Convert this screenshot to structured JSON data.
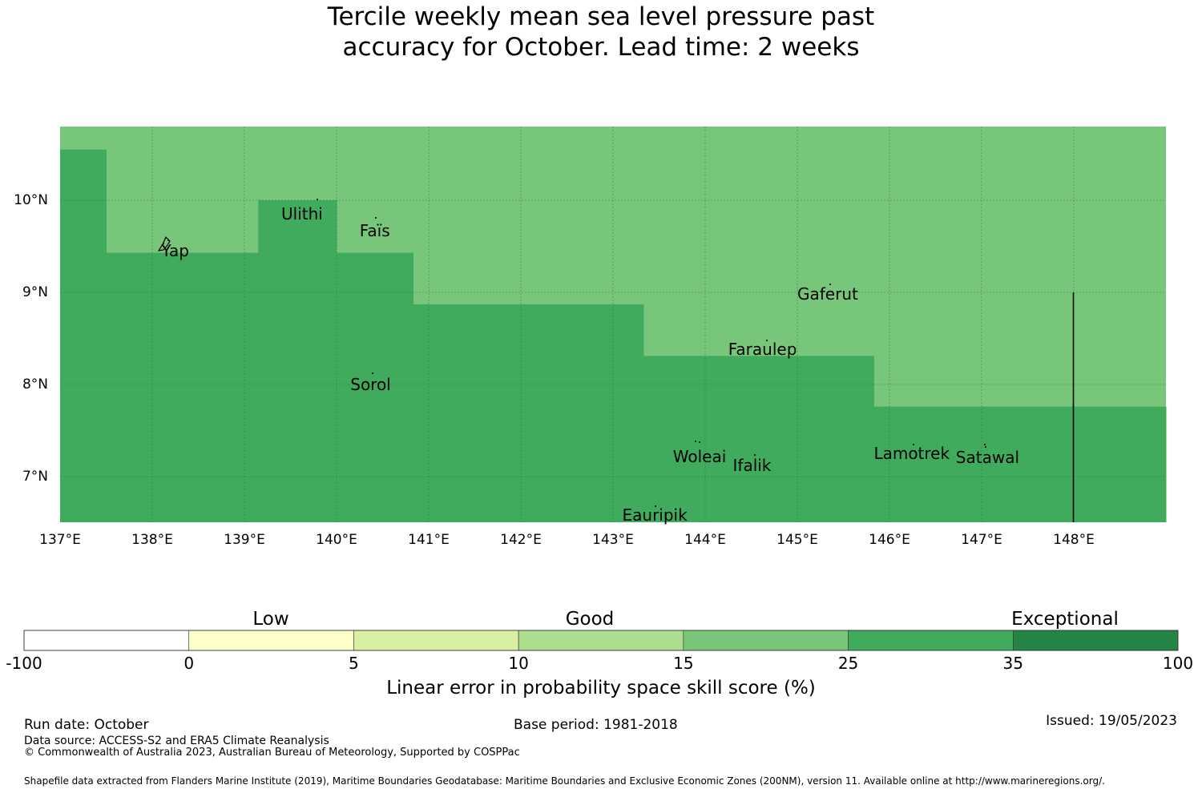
{
  "title_line1": "Tercile weekly mean sea level pressure past",
  "title_line2": "accuracy for October. Lead time: 2 weeks",
  "map": {
    "lon_range": [
      137,
      149
    ],
    "lat_range": [
      6.5,
      10.8
    ],
    "lon_ticks": [
      "137°E",
      "138°E",
      "139°E",
      "140°E",
      "141°E",
      "142°E",
      "143°E",
      "144°E",
      "145°E",
      "146°E",
      "147°E",
      "148°E"
    ],
    "lat_ticks": [
      "10°N",
      "9°N",
      "8°N",
      "7°N"
    ],
    "colors": {
      "light": "#78c679",
      "dark": "#41ab5d"
    },
    "dark_region_lat_tops": [
      {
        "lon_from": 137.0,
        "lon_to": 137.5,
        "lat_top": 10.55
      },
      {
        "lon_from": 137.5,
        "lon_to": 139.15,
        "lat_top": 9.43
      },
      {
        "lon_from": 139.15,
        "lon_to": 140.0,
        "lat_top": 10.0
      },
      {
        "lon_from": 140.0,
        "lon_to": 140.83,
        "lat_top": 9.43
      },
      {
        "lon_from": 140.83,
        "lon_to": 143.33,
        "lat_top": 8.87
      },
      {
        "lon_from": 143.33,
        "lon_to": 145.83,
        "lat_top": 8.31
      },
      {
        "lon_from": 145.83,
        "lon_to": 149.0,
        "lat_top": 7.76
      }
    ],
    "places": [
      {
        "name": "Yap",
        "lon": 138.1,
        "lat": 9.45
      },
      {
        "name": "Ulithi",
        "lon": 139.4,
        "lat": 9.85
      },
      {
        "name": "Faïs",
        "lon": 140.25,
        "lat": 9.67
      },
      {
        "name": "Gaferut",
        "lon": 145.0,
        "lat": 8.98
      },
      {
        "name": "Faraulep",
        "lon": 144.25,
        "lat": 8.38
      },
      {
        "name": "Sorol",
        "lon": 140.15,
        "lat": 8.0
      },
      {
        "name": "Woleai",
        "lon": 143.65,
        "lat": 7.22
      },
      {
        "name": "Ifalik",
        "lon": 144.3,
        "lat": 7.12
      },
      {
        "name": "Lamotrek",
        "lon": 145.83,
        "lat": 7.25
      },
      {
        "name": "Satawal",
        "lon": 146.72,
        "lat": 7.21
      },
      {
        "name": "Eauripik",
        "lon": 143.1,
        "lat": 6.58
      }
    ]
  },
  "colorbar": {
    "categories": [
      "Low",
      "Good",
      "Exceptional"
    ],
    "ticks": [
      "-100",
      "0",
      "5",
      "10",
      "15",
      "25",
      "35",
      "100"
    ],
    "colors": [
      "#ffffff",
      "#ffffcc",
      "#d9f0a3",
      "#addd8e",
      "#78c679",
      "#41ab5d",
      "#238443"
    ],
    "label": "Linear error in probability space skill score (%)"
  },
  "footer": {
    "run_date": "Run date: October",
    "base_period": "Base period: 1981-2018",
    "issued": "Issued: 19/05/2023",
    "data_source": "Data source: ACCESS-S2 and ERA5 Climate Reanalysis",
    "copyright": "© Commonwealth of Australia 2023, Australian Bureau of Meteorology, Supported by COSPPac",
    "shapefile": "Shapefile data extracted from Flanders Marine Institute (2019), Maritime Boundaries Geodatabase: Maritime Boundaries and Exclusive Economic Zones (200NM), version 11. Available online at http://www.marineregions.org/."
  }
}
